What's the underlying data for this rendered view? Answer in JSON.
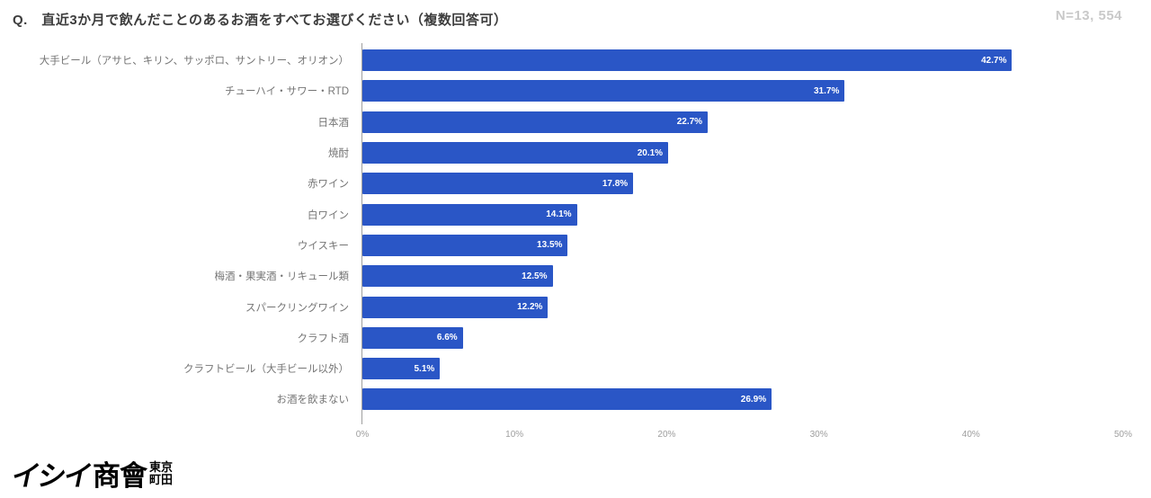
{
  "header": {
    "title": "Q.　直近3か月で飲んだことのあるお酒をすべてお選びください（複数回答可）",
    "sample_size": "N=13, 554"
  },
  "chart_data": {
    "type": "bar",
    "orientation": "horizontal",
    "title": "直近3か月で飲んだことのあるお酒（複数回答可）",
    "categories": [
      "大手ビール（アサヒ、キリン、サッポロ、サントリー、オリオン）",
      "チューハイ・サワー・RTD",
      "日本酒",
      "焼酎",
      "赤ワイン",
      "白ワイン",
      "ウイスキー",
      "梅酒・果実酒・リキュール類",
      "スパークリングワイン",
      "クラフト酒",
      "クラフトビール（大手ビール以外）",
      "お酒を飲まない"
    ],
    "values": [
      42.7,
      31.7,
      22.7,
      20.1,
      17.8,
      14.1,
      13.5,
      12.5,
      12.2,
      6.6,
      5.1,
      26.9
    ],
    "value_labels": [
      "42.7%",
      "31.7%",
      "22.7%",
      "20.1%",
      "17.8%",
      "14.1%",
      "13.5%",
      "12.5%",
      "12.2%",
      "6.6%",
      "5.1%",
      "26.9%"
    ],
    "xlabel": "",
    "ylabel": "",
    "xlim": [
      0,
      50
    ],
    "x_ticks": [
      "0%",
      "10%",
      "20%",
      "30%",
      "40%",
      "50%"
    ],
    "grid": false,
    "legend_position": "none",
    "bar_color": "#2a56c6",
    "label_color": "#757575",
    "tick_color": "#9e9e9e",
    "value_label_color": "#ffffff"
  },
  "logo": {
    "name_kana": "イシイ",
    "name_kanji": "商會",
    "location_top": "東京",
    "location_bottom": "町田"
  }
}
